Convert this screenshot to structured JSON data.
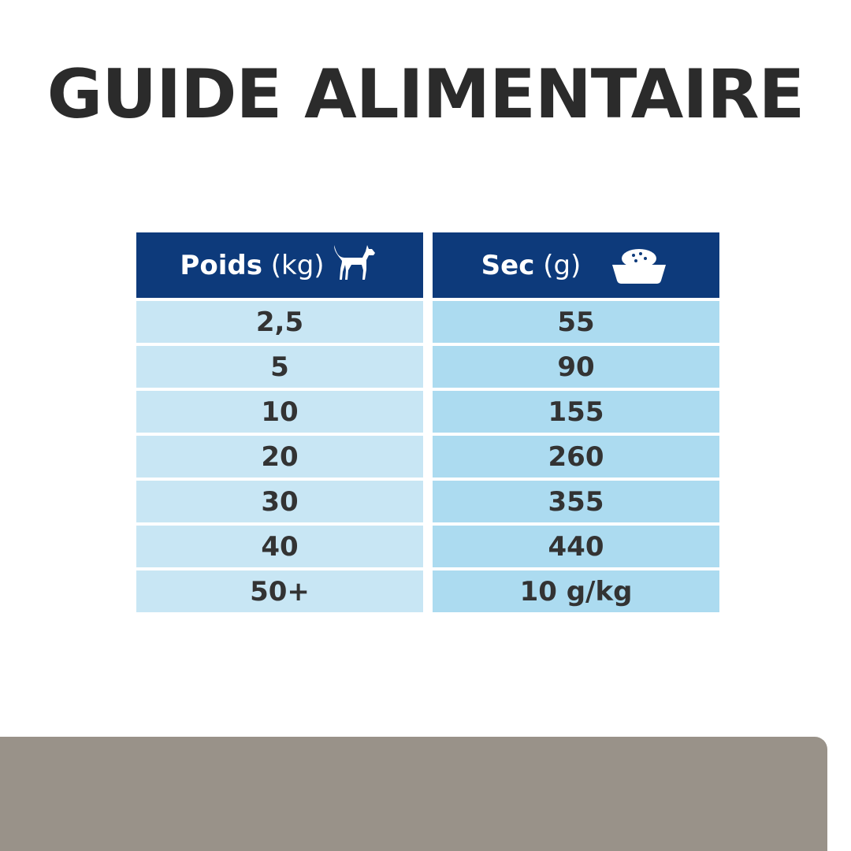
{
  "title": "GUIDE ALIMENTAIRE",
  "table": {
    "headers": [
      {
        "label": "Poids",
        "unit": "(kg)",
        "icon": "dog-icon"
      },
      {
        "label": "Sec",
        "unit": "(g)",
        "icon": "food-bowl-icon"
      }
    ],
    "weight": [
      "2,5",
      "5",
      "10",
      "20",
      "30",
      "40",
      "50+"
    ],
    "dry": [
      "55",
      "90",
      "155",
      "260",
      "355",
      "440",
      "10 g/kg"
    ]
  },
  "colors": {
    "header": "#0d3a7b",
    "left_cells": "#c8e6f4",
    "right_cells": "#acdbf0",
    "panel": "#999289"
  }
}
